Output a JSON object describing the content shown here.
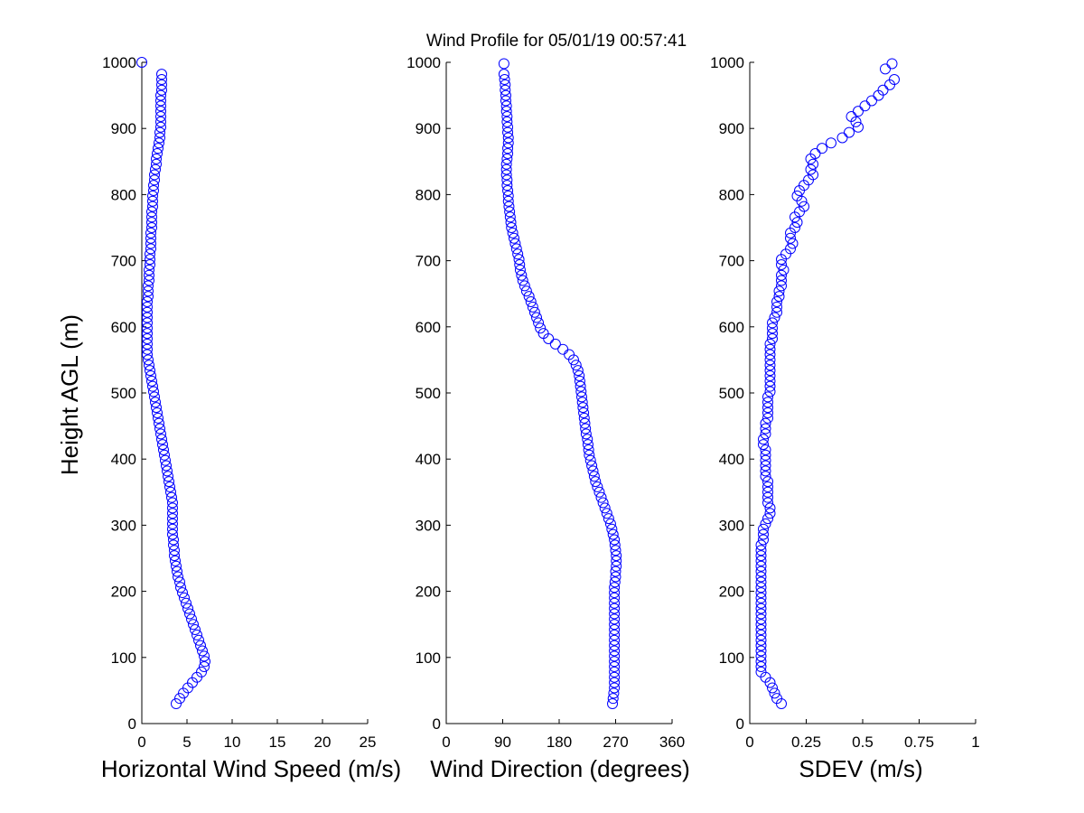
{
  "title": "Wind Profile for  05/01/19 00:57:41",
  "chart_data": [
    {
      "type": "scatter",
      "name": "speed",
      "xlabel": "Horizontal Wind Speed (m/s)",
      "ylabel": "Height AGL (m)",
      "xlim": [
        0,
        25
      ],
      "ylim": [
        0,
        1000
      ],
      "xticks": [
        "0",
        "5",
        "10",
        "15",
        "20",
        "25"
      ],
      "yticks": [
        "0",
        "100",
        "200",
        "300",
        "400",
        "500",
        "600",
        "700",
        "800",
        "900",
        "1000"
      ],
      "marker_color": "#0000ff",
      "x": [
        3.8,
        4.2,
        4.6,
        5.1,
        5.6,
        6.1,
        6.6,
        6.9,
        7.0,
        6.9,
        6.7,
        6.5,
        6.3,
        6.1,
        5.9,
        5.7,
        5.5,
        5.3,
        5.1,
        4.9,
        4.7,
        4.5,
        4.3,
        4.2,
        4.0,
        3.9,
        3.8,
        3.7,
        3.6,
        3.6,
        3.5,
        3.5,
        3.4,
        3.4,
        3.4,
        3.4,
        3.4,
        3.4,
        3.4,
        3.3,
        3.2,
        3.1,
        3.0,
        2.9,
        2.8,
        2.7,
        2.6,
        2.5,
        2.4,
        2.3,
        2.2,
        2.1,
        2.0,
        1.9,
        1.8,
        1.7,
        1.6,
        1.5,
        1.4,
        1.3,
        1.2,
        1.1,
        1.0,
        0.9,
        0.8,
        0.7,
        0.6,
        0.6,
        0.6,
        0.6,
        0.6,
        0.6,
        0.6,
        0.6,
        0.6,
        0.6,
        0.6,
        0.7,
        0.7,
        0.7,
        0.8,
        0.8,
        0.8,
        0.9,
        0.9,
        0.9,
        1.0,
        1.0,
        1.0,
        1.0,
        1.1,
        1.1,
        1.1,
        1.1,
        1.2,
        1.2,
        1.2,
        1.3,
        1.3,
        1.4,
        1.4,
        1.5,
        1.6,
        1.6,
        1.7,
        1.8,
        1.9,
        2.0,
        2.0,
        2.1,
        2.1,
        2.1,
        2.1,
        2.1,
        2.1,
        2.1,
        2.2,
        2.2,
        2.2,
        2.2,
        0.0
      ],
      "y": [
        30,
        38,
        46,
        54,
        62,
        70,
        78,
        86,
        94,
        102,
        110,
        118,
        126,
        134,
        142,
        150,
        158,
        166,
        174,
        182,
        190,
        198,
        206,
        214,
        222,
        230,
        238,
        246,
        254,
        262,
        270,
        278,
        286,
        294,
        302,
        310,
        318,
        326,
        334,
        342,
        350,
        358,
        366,
        374,
        382,
        390,
        398,
        406,
        414,
        422,
        430,
        438,
        446,
        454,
        462,
        470,
        478,
        486,
        494,
        502,
        510,
        518,
        526,
        534,
        542,
        550,
        558,
        566,
        574,
        582,
        590,
        598,
        606,
        614,
        622,
        630,
        638,
        646,
        654,
        662,
        670,
        678,
        686,
        694,
        702,
        710,
        718,
        726,
        734,
        742,
        750,
        758,
        766,
        774,
        782,
        790,
        798,
        806,
        814,
        822,
        830,
        838,
        846,
        854,
        862,
        870,
        878,
        886,
        894,
        902,
        910,
        918,
        926,
        934,
        942,
        950,
        958,
        966,
        974,
        982,
        1000
      ]
    },
    {
      "type": "scatter",
      "name": "direction",
      "xlabel": "Wind Direction (degrees)",
      "ylabel": "",
      "xlim": [
        0,
        360
      ],
      "ylim": [
        0,
        1000
      ],
      "xticks": [
        "0",
        "90",
        "180",
        "270",
        "360"
      ],
      "yticks": [
        "0",
        "100",
        "200",
        "300",
        "400",
        "500",
        "600",
        "700",
        "800",
        "900",
        "1000"
      ],
      "marker_color": "#0000ff",
      "x": [
        265,
        266,
        267,
        268,
        268,
        268,
        268,
        268,
        268,
        268,
        268,
        268,
        268,
        268,
        268,
        268,
        268,
        268,
        268,
        268,
        268,
        268,
        268,
        269,
        270,
        270,
        271,
        271,
        271,
        270,
        269,
        268,
        266,
        264,
        262,
        259,
        256,
        253,
        250,
        247,
        244,
        241,
        238,
        236,
        234,
        232,
        230,
        228,
        227,
        226,
        225,
        223,
        222,
        221,
        220,
        219,
        218,
        217,
        216,
        215,
        214,
        213,
        212,
        210,
        207,
        203,
        196,
        186,
        174,
        163,
        155,
        150,
        147,
        144,
        141,
        138,
        135,
        132,
        128,
        125,
        122,
        120,
        118,
        117,
        116,
        114,
        112,
        110,
        108,
        106,
        104,
        103,
        102,
        101,
        100,
        99,
        99,
        98,
        97,
        97,
        96,
        96,
        96,
        97,
        98,
        98,
        99,
        99,
        98,
        98,
        97,
        97,
        96,
        96,
        95,
        95,
        94,
        94,
        93,
        92,
        92
      ],
      "y": [
        30,
        38,
        46,
        54,
        62,
        70,
        78,
        86,
        94,
        102,
        110,
        118,
        126,
        134,
        142,
        150,
        158,
        166,
        174,
        182,
        190,
        198,
        206,
        214,
        222,
        230,
        238,
        246,
        254,
        262,
        270,
        278,
        286,
        294,
        302,
        310,
        318,
        326,
        334,
        342,
        350,
        358,
        366,
        374,
        382,
        390,
        398,
        406,
        414,
        422,
        430,
        438,
        446,
        454,
        462,
        470,
        478,
        486,
        494,
        502,
        510,
        518,
        526,
        534,
        542,
        550,
        558,
        566,
        574,
        582,
        590,
        598,
        606,
        614,
        622,
        630,
        638,
        646,
        654,
        662,
        670,
        678,
        686,
        694,
        702,
        710,
        718,
        726,
        734,
        742,
        750,
        758,
        766,
        774,
        782,
        790,
        798,
        806,
        814,
        822,
        830,
        838,
        846,
        854,
        862,
        870,
        878,
        886,
        894,
        902,
        910,
        918,
        926,
        934,
        942,
        950,
        958,
        966,
        974,
        982,
        998
      ]
    },
    {
      "type": "scatter",
      "name": "sdev",
      "xlabel": "SDEV  (m/s)",
      "ylabel": "",
      "xlim": [
        0,
        1
      ],
      "ylim": [
        0,
        1000
      ],
      "xticks": [
        "0",
        "0.25",
        "0.5",
        "0.75",
        "1"
      ],
      "yticks": [
        "0",
        "100",
        "200",
        "300",
        "400",
        "500",
        "600",
        "700",
        "800",
        "900",
        "1000"
      ],
      "marker_color": "#0000ff",
      "x": [
        0.14,
        0.12,
        0.11,
        0.1,
        0.09,
        0.07,
        0.05,
        0.05,
        0.05,
        0.05,
        0.05,
        0.05,
        0.05,
        0.05,
        0.05,
        0.05,
        0.05,
        0.05,
        0.05,
        0.05,
        0.05,
        0.05,
        0.05,
        0.05,
        0.05,
        0.05,
        0.05,
        0.05,
        0.05,
        0.05,
        0.05,
        0.06,
        0.06,
        0.06,
        0.07,
        0.08,
        0.09,
        0.09,
        0.08,
        0.08,
        0.08,
        0.08,
        0.08,
        0.07,
        0.07,
        0.07,
        0.07,
        0.07,
        0.07,
        0.06,
        0.06,
        0.07,
        0.07,
        0.07,
        0.08,
        0.08,
        0.08,
        0.08,
        0.08,
        0.09,
        0.09,
        0.09,
        0.09,
        0.09,
        0.09,
        0.09,
        0.09,
        0.09,
        0.09,
        0.1,
        0.1,
        0.1,
        0.1,
        0.11,
        0.12,
        0.12,
        0.12,
        0.13,
        0.13,
        0.14,
        0.14,
        0.14,
        0.15,
        0.14,
        0.14,
        0.16,
        0.18,
        0.19,
        0.18,
        0.18,
        0.2,
        0.21,
        0.2,
        0.22,
        0.24,
        0.23,
        0.21,
        0.22,
        0.24,
        0.26,
        0.28,
        0.27,
        0.28,
        0.27,
        0.29,
        0.32,
        0.36,
        0.41,
        0.44,
        0.48,
        0.47,
        0.45,
        0.48,
        0.51,
        0.54,
        0.57,
        0.59,
        0.62,
        0.64,
        0.6,
        0.63
      ],
      "y": [
        30,
        38,
        46,
        54,
        62,
        70,
        78,
        86,
        94,
        102,
        110,
        118,
        126,
        134,
        142,
        150,
        158,
        166,
        174,
        182,
        190,
        198,
        206,
        214,
        222,
        230,
        238,
        246,
        254,
        262,
        270,
        278,
        286,
        294,
        302,
        310,
        318,
        326,
        334,
        342,
        350,
        358,
        366,
        374,
        382,
        390,
        398,
        406,
        414,
        422,
        430,
        438,
        446,
        454,
        462,
        470,
        478,
        486,
        494,
        502,
        510,
        518,
        526,
        534,
        542,
        550,
        558,
        566,
        574,
        582,
        590,
        598,
        606,
        614,
        622,
        630,
        638,
        646,
        654,
        662,
        670,
        678,
        686,
        694,
        702,
        710,
        718,
        726,
        734,
        742,
        750,
        758,
        766,
        774,
        782,
        790,
        798,
        806,
        814,
        822,
        830,
        838,
        846,
        854,
        862,
        870,
        878,
        886,
        894,
        902,
        910,
        918,
        926,
        934,
        942,
        950,
        958,
        966,
        974,
        990,
        998
      ]
    }
  ]
}
